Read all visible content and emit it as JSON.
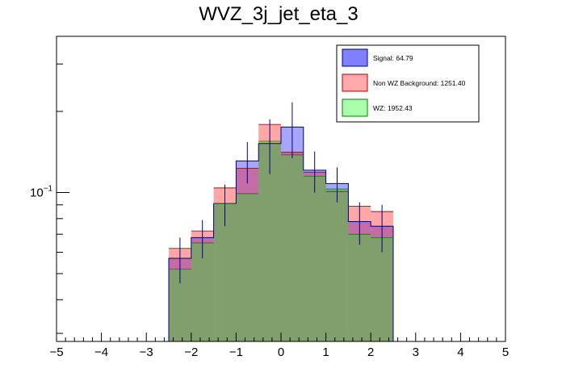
{
  "chart_data": {
    "type": "bar",
    "title": "WVZ_3j_jet_eta_3",
    "xlabel": "",
    "ylabel": "",
    "xlim": [
      -5,
      5
    ],
    "ylim": [
      0.028,
      0.38
    ],
    "yscale": "log",
    "x_ticks": [
      "−5",
      "−4",
      "−3",
      "−2",
      "−1",
      "0",
      "1",
      "2",
      "3",
      "4",
      "5"
    ],
    "y_tick_label": {
      "mantissa": "10",
      "exponent": "−1",
      "value": 0.1
    },
    "bin_edges": [
      -2.5,
      -2.0,
      -1.5,
      -1.0,
      -0.5,
      0.0,
      0.5,
      1.0,
      1.5,
      2.0,
      2.5
    ],
    "series": [
      {
        "name": "Signal",
        "legend_label": "Signal: 64.79",
        "color": "#7f7fff",
        "values": [
          0.057,
          0.068,
          0.091,
          0.131,
          0.152,
          0.175,
          0.121,
          0.108,
          0.078,
          0.075
        ],
        "errors": [
          0.011,
          0.011,
          0.016,
          0.023,
          0.035,
          0.041,
          0.021,
          0.016,
          0.014,
          0.015
        ]
      },
      {
        "name": "Non WZ Background",
        "legend_label": "Non WZ Background: 1251.40",
        "color": "#ff8a8a",
        "values": [
          0.062,
          0.072,
          0.104,
          0.123,
          0.179,
          0.141,
          0.119,
          0.101,
          0.089,
          0.085
        ]
      },
      {
        "name": "WZ",
        "legend_label": "WZ: 1952.43",
        "color": "#8aff8a",
        "values": [
          0.052,
          0.065,
          0.091,
          0.099,
          0.155,
          0.138,
          0.115,
          0.103,
          0.07,
          0.068
        ]
      }
    ],
    "legend_position": "top-right"
  }
}
